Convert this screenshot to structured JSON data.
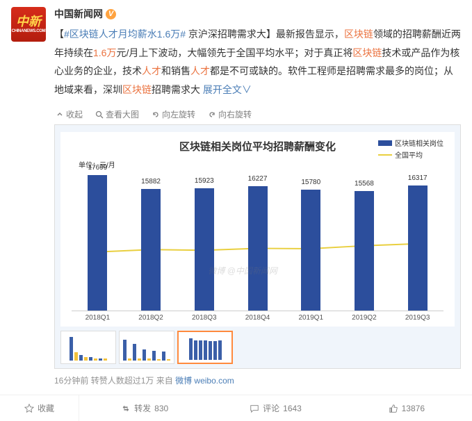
{
  "author": {
    "name": "中国新闻网",
    "avatar_main": "中新",
    "avatar_sub": "CHINANEWS.COM",
    "verified": true
  },
  "body": {
    "t1": "【",
    "tag": "#区块链人才月均薪水1.6万#",
    "t2": " 京沪深招聘需求大】最新报告显示，",
    "k1": "区块链",
    "t3": "领域的招聘薪酬近两年持续在",
    "k2": "1.6万",
    "t4": "元/月上下波动，大幅领先于全国平均水平；对于真正将",
    "k3": "区块链",
    "t5": "技术或产品作为核心业务的企业，技术",
    "k4": "人才",
    "t6": "和销售",
    "k5": "人才",
    "t7": "都是不可或缺的。软件工程师是招聘需求最多的岗位；从地域来看，深圳",
    "k6": "区块链",
    "t8": "招聘需求大  ",
    "expand": "展开全文",
    "chev": "∨"
  },
  "toolbar": {
    "collapse": "收起",
    "zoom": "查看大图",
    "rotL": "向左旋转",
    "rotR": "向右旋转"
  },
  "chart": {
    "title": "区块链相关岗位平均招聘薪酬变化",
    "unit": "单位：元/月",
    "legend": {
      "a": "区块链相关岗位",
      "b": "全国平均"
    },
    "bar_color": "#2c4e9c",
    "line_color": "#e9cf3f",
    "categories": [
      "2018Q1",
      "2018Q2",
      "2018Q3",
      "2018Q4",
      "2019Q1",
      "2019Q2",
      "2019Q3"
    ],
    "bars": [
      17699,
      15882,
      15923,
      16227,
      15780,
      15568,
      16317
    ],
    "line": [
      7629,
      7932,
      7850,
      8096,
      8050,
      8432,
      8698
    ],
    "ymax": 18000,
    "watermark": "微博 @中国新闻网"
  },
  "meta": {
    "time": "16分钟前",
    "rep": "转赞人数超过1万",
    "src1": "来自 ",
    "src2": "微博 weibo.com"
  },
  "actions": {
    "fav": "收藏",
    "repost": "转发",
    "repost_n": "830",
    "comment": "评论",
    "comment_n": "1643",
    "like_n": "13876"
  }
}
